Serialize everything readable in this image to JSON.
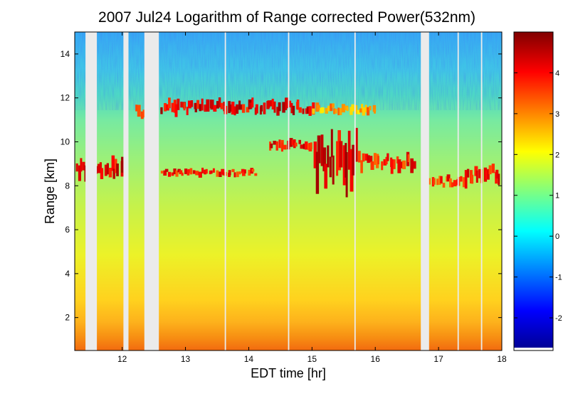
{
  "chart_data": {
    "type": "heatmap",
    "title": "2007 Jul24  Logarithm of Range corrected Power(532nm)",
    "xlabel": "EDT time [hr]",
    "ylabel": "Range [km]",
    "xlim": [
      11.25,
      18.0
    ],
    "ylim": [
      0.5,
      15.0
    ],
    "x_ticks": [
      12,
      13,
      14,
      15,
      16,
      17,
      18
    ],
    "y_ticks": [
      2,
      4,
      6,
      8,
      10,
      12,
      14
    ],
    "colorbar": {
      "range": [
        -2.8,
        5.0
      ],
      "ticks": [
        -2,
        -1,
        0,
        1,
        2,
        3,
        4
      ],
      "colormap": "jet"
    },
    "no_data_intervals_hr": [
      [
        11.42,
        11.6
      ],
      [
        12.02,
        12.1
      ],
      [
        12.35,
        12.58
      ],
      [
        16.72,
        16.85
      ],
      [
        13.62,
        13.64
      ],
      [
        14.62,
        14.64
      ],
      [
        15.67,
        15.69
      ],
      [
        17.3,
        17.32
      ],
      [
        17.67,
        17.69
      ]
    ],
    "layers_log_power": [
      {
        "t_start": 11.25,
        "t_end": 12.05,
        "range_km": 8.8,
        "thickness_km": 0.9,
        "value": 4.8
      },
      {
        "t_start": 12.2,
        "t_end": 12.5,
        "range_km": 11.4,
        "thickness_km": 0.7,
        "value": 3.6
      },
      {
        "t_start": 12.6,
        "t_end": 15.0,
        "range_km": 11.6,
        "thickness_km": 0.7,
        "value": 4.8
      },
      {
        "t_start": 15.0,
        "t_end": 16.0,
        "range_km": 11.5,
        "thickness_km": 0.5,
        "value": 3.4
      },
      {
        "t_start": 12.6,
        "t_end": 14.1,
        "range_km": 8.6,
        "thickness_km": 0.35,
        "value": 4.5
      },
      {
        "t_start": 14.3,
        "t_end": 15.0,
        "range_km": 9.9,
        "thickness_km": 0.5,
        "value": 4.6
      },
      {
        "t_start": 15.0,
        "t_end": 15.7,
        "range_km": 9.2,
        "thickness_km": 2.6,
        "value": 4.9
      },
      {
        "t_start": 15.7,
        "t_end": 16.6,
        "range_km": 9.1,
        "thickness_km": 0.8,
        "value": 4.4
      },
      {
        "t_start": 16.8,
        "t_end": 17.4,
        "range_km": 8.2,
        "thickness_km": 0.6,
        "value": 4.3
      },
      {
        "t_start": 17.4,
        "t_end": 18.0,
        "range_km": 8.5,
        "thickness_km": 1.0,
        "value": 4.6
      }
    ]
  }
}
